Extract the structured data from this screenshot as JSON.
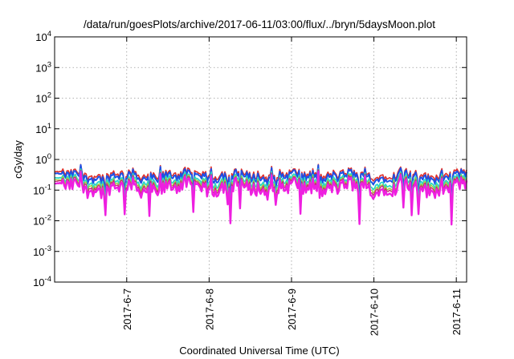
{
  "chart_data": {
    "type": "line",
    "title": "/data/run/goesPlots/archive/2017-06-11/03:00/flux/../bryn/5daysMoon.plot",
    "xlabel": "Coordinated Universal Time (UTC)",
    "ylabel": "cGy/day",
    "yscale": "log",
    "ylim": [
      0.0001,
      10000
    ],
    "xlim": [
      "2017-06-06 03:00",
      "2017-06-11 03:00"
    ],
    "grid": true,
    "x_ticks": [
      "2017-6-7",
      "2017-6-8",
      "2017-6-9",
      "2017-6-10",
      "2017-6-11"
    ],
    "y_ticks": [
      {
        "base": "10",
        "exp": "4",
        "value": 10000
      },
      {
        "base": "10",
        "exp": "3",
        "value": 1000
      },
      {
        "base": "10",
        "exp": "2",
        "value": 100
      },
      {
        "base": "10",
        "exp": "1",
        "value": 10
      },
      {
        "base": "10",
        "exp": "0",
        "value": 1
      },
      {
        "base": "10",
        "exp": "-1",
        "value": 0.1
      },
      {
        "base": "10",
        "exp": "-2",
        "value": 0.01
      },
      {
        "base": "10",
        "exp": "-3",
        "value": 0.001
      },
      {
        "base": "10",
        "exp": "-4",
        "value": 0.0001
      }
    ],
    "series": [
      {
        "color": "#e0302a",
        "level": 0.32,
        "width": 1.6
      },
      {
        "color": "#1d4fe6",
        "level": 0.27,
        "width": 2.0
      },
      {
        "color": "#2ad6c8",
        "level": 0.19,
        "width": 1.8
      },
      {
        "color": "#9ad23a",
        "level": 0.16,
        "width": 1.4
      },
      {
        "color": "#c8287a",
        "level": 0.14,
        "width": 1.4
      },
      {
        "color": "#ee1fe0",
        "level": 0.115,
        "width": 2.4
      }
    ]
  }
}
